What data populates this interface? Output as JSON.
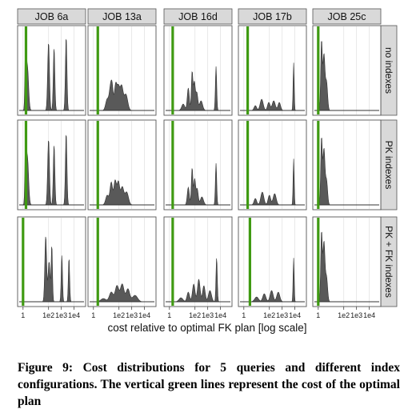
{
  "chart_data": {
    "type": "area",
    "layout": "facet-grid",
    "columns": [
      "JOB 6a",
      "JOB 13a",
      "JOB 16d",
      "JOB 17b",
      "JOB 25c"
    ],
    "rows": [
      "no indexes",
      "PK indexes",
      "PK + FK indexes"
    ],
    "xlabel": "cost relative to optimal FK plan  [log scale]",
    "x_scale": "log",
    "xlim": [
      0.5,
      60000
    ],
    "x_ticks": [
      1,
      100,
      1000,
      10000
    ],
    "x_tick_labels": [
      "1",
      "1e2",
      "1e3",
      "1e4"
    ],
    "grid": true,
    "colors": {
      "density_fill": "#595959",
      "optimal_line": "#3f9a12",
      "strip_bg": "#d9d9d9",
      "panel_border": "#555555"
    },
    "panels": [
      {
        "column": "JOB 6a",
        "row": "no indexes",
        "optimal_cost": 1.7,
        "peaks": [
          {
            "x": 1.6,
            "h": 0.88,
            "w": 0.05
          },
          {
            "x": 2.2,
            "h": 0.55,
            "w": 0.09
          },
          {
            "x": 100,
            "h": 0.85,
            "w": 0.07
          },
          {
            "x": 270,
            "h": 0.78,
            "w": 0.06
          },
          {
            "x": 2400,
            "h": 0.92,
            "w": 0.06
          }
        ]
      },
      {
        "column": "JOB 13a",
        "row": "no indexes",
        "optimal_cost": 2.2,
        "peaks": [
          {
            "x": 12,
            "h": 0.14,
            "w": 0.12
          },
          {
            "x": 22,
            "h": 0.28,
            "w": 0.1
          },
          {
            "x": 30,
            "h": 0.22,
            "w": 0.08
          },
          {
            "x": 55,
            "h": 0.32,
            "w": 0.1
          },
          {
            "x": 90,
            "h": 0.26,
            "w": 0.1
          },
          {
            "x": 160,
            "h": 0.3,
            "w": 0.12
          },
          {
            "x": 350,
            "h": 0.2,
            "w": 0.14
          }
        ]
      },
      {
        "column": "JOB 16d",
        "row": "no indexes",
        "optimal_cost": 1.8,
        "peaks": [
          {
            "x": 12,
            "h": 0.08,
            "w": 0.12
          },
          {
            "x": 30,
            "h": 0.28,
            "w": 0.08
          },
          {
            "x": 60,
            "h": 0.48,
            "w": 0.06
          },
          {
            "x": 90,
            "h": 0.35,
            "w": 0.07
          },
          {
            "x": 140,
            "h": 0.22,
            "w": 0.08
          },
          {
            "x": 300,
            "h": 0.12,
            "w": 0.12
          },
          {
            "x": 4500,
            "h": 0.55,
            "w": 0.05
          }
        ]
      },
      {
        "column": "JOB 17b",
        "row": "no indexes",
        "optimal_cost": 2.0,
        "peaks": [
          {
            "x": 8,
            "h": 0.06,
            "w": 0.1
          },
          {
            "x": 25,
            "h": 0.14,
            "w": 0.12
          },
          {
            "x": 90,
            "h": 0.1,
            "w": 0.1
          },
          {
            "x": 220,
            "h": 0.12,
            "w": 0.12
          },
          {
            "x": 600,
            "h": 0.1,
            "w": 0.1
          },
          {
            "x": 8000,
            "h": 0.6,
            "w": 0.04
          }
        ]
      },
      {
        "column": "JOB 25c",
        "row": "no indexes",
        "optimal_cost": 1.0,
        "peaks": [
          {
            "x": 1.8,
            "h": 0.85,
            "w": 0.06
          },
          {
            "x": 2.8,
            "h": 0.7,
            "w": 0.08
          },
          {
            "x": 4.5,
            "h": 0.35,
            "w": 0.08
          }
        ]
      },
      {
        "column": "JOB 6a",
        "row": "PK indexes",
        "optimal_cost": 1.7,
        "peaks": [
          {
            "x": 1.6,
            "h": 0.85,
            "w": 0.05
          },
          {
            "x": 2.2,
            "h": 0.6,
            "w": 0.09
          },
          {
            "x": 100,
            "h": 0.82,
            "w": 0.07
          },
          {
            "x": 270,
            "h": 0.75,
            "w": 0.06
          },
          {
            "x": 2400,
            "h": 0.9,
            "w": 0.06
          }
        ]
      },
      {
        "column": "JOB 13a",
        "row": "PK indexes",
        "optimal_cost": 2.2,
        "peaks": [
          {
            "x": 12,
            "h": 0.12,
            "w": 0.12
          },
          {
            "x": 25,
            "h": 0.28,
            "w": 0.1
          },
          {
            "x": 50,
            "h": 0.3,
            "w": 0.1
          },
          {
            "x": 90,
            "h": 0.28,
            "w": 0.1
          },
          {
            "x": 180,
            "h": 0.22,
            "w": 0.12
          },
          {
            "x": 400,
            "h": 0.16,
            "w": 0.14
          }
        ]
      },
      {
        "column": "JOB 16d",
        "row": "PK indexes",
        "optimal_cost": 1.8,
        "peaks": [
          {
            "x": 30,
            "h": 0.22,
            "w": 0.08
          },
          {
            "x": 60,
            "h": 0.46,
            "w": 0.06
          },
          {
            "x": 95,
            "h": 0.32,
            "w": 0.07
          },
          {
            "x": 150,
            "h": 0.2,
            "w": 0.08
          },
          {
            "x": 350,
            "h": 0.1,
            "w": 0.12
          },
          {
            "x": 4500,
            "h": 0.52,
            "w": 0.05
          }
        ]
      },
      {
        "column": "JOB 17b",
        "row": "PK indexes",
        "optimal_cost": 2.0,
        "peaks": [
          {
            "x": 8,
            "h": 0.08,
            "w": 0.1
          },
          {
            "x": 28,
            "h": 0.16,
            "w": 0.12
          },
          {
            "x": 100,
            "h": 0.12,
            "w": 0.1
          },
          {
            "x": 260,
            "h": 0.14,
            "w": 0.12
          },
          {
            "x": 8000,
            "h": 0.58,
            "w": 0.04
          }
        ]
      },
      {
        "column": "JOB 25c",
        "row": "PK indexes",
        "optimal_cost": 1.0,
        "peaks": [
          {
            "x": 1.8,
            "h": 0.82,
            "w": 0.06
          },
          {
            "x": 2.8,
            "h": 0.7,
            "w": 0.08
          },
          {
            "x": 4.5,
            "h": 0.3,
            "w": 0.08
          }
        ]
      },
      {
        "column": "JOB 6a",
        "row": "PK + FK indexes",
        "optimal_cost": 1.0,
        "peaks": [
          {
            "x": 60,
            "h": 0.82,
            "w": 0.07
          },
          {
            "x": 110,
            "h": 0.5,
            "w": 0.08
          },
          {
            "x": 180,
            "h": 0.7,
            "w": 0.05
          },
          {
            "x": 1100,
            "h": 0.58,
            "w": 0.05
          },
          {
            "x": 4000,
            "h": 0.55,
            "w": 0.05
          }
        ]
      },
      {
        "column": "JOB 13a",
        "row": "PK + FK indexes",
        "optimal_cost": 2.2,
        "peaks": [
          {
            "x": 6,
            "h": 0.04,
            "w": 0.2
          },
          {
            "x": 25,
            "h": 0.12,
            "w": 0.15
          },
          {
            "x": 70,
            "h": 0.2,
            "w": 0.14
          },
          {
            "x": 180,
            "h": 0.22,
            "w": 0.14
          },
          {
            "x": 500,
            "h": 0.16,
            "w": 0.14
          },
          {
            "x": 1800,
            "h": 0.08,
            "w": 0.2
          }
        ]
      },
      {
        "column": "JOB 16d",
        "row": "PK + FK indexes",
        "optimal_cost": 1.8,
        "peaks": [
          {
            "x": 8,
            "h": 0.05,
            "w": 0.15
          },
          {
            "x": 30,
            "h": 0.12,
            "w": 0.1
          },
          {
            "x": 80,
            "h": 0.22,
            "w": 0.1
          },
          {
            "x": 200,
            "h": 0.28,
            "w": 0.1
          },
          {
            "x": 500,
            "h": 0.2,
            "w": 0.1
          },
          {
            "x": 1500,
            "h": 0.14,
            "w": 0.12
          },
          {
            "x": 5000,
            "h": 0.55,
            "w": 0.05
          }
        ]
      },
      {
        "column": "JOB 17b",
        "row": "PK + FK indexes",
        "optimal_cost": 3.0,
        "peaks": [
          {
            "x": 10,
            "h": 0.06,
            "w": 0.15
          },
          {
            "x": 40,
            "h": 0.1,
            "w": 0.12
          },
          {
            "x": 150,
            "h": 0.14,
            "w": 0.12
          },
          {
            "x": 500,
            "h": 0.12,
            "w": 0.12
          },
          {
            "x": 8000,
            "h": 0.55,
            "w": 0.04
          }
        ]
      },
      {
        "column": "JOB 25c",
        "row": "PK + FK indexes",
        "optimal_cost": 1.0,
        "peaks": [
          {
            "x": 1.8,
            "h": 0.85,
            "w": 0.06
          },
          {
            "x": 2.8,
            "h": 0.75,
            "w": 0.08
          },
          {
            "x": 4.5,
            "h": 0.3,
            "w": 0.08
          }
        ]
      }
    ]
  },
  "caption": "Figure 9:  Cost distributions for 5 queries and different index configurations.  The vertical green lines represent the cost of the optimal plan"
}
